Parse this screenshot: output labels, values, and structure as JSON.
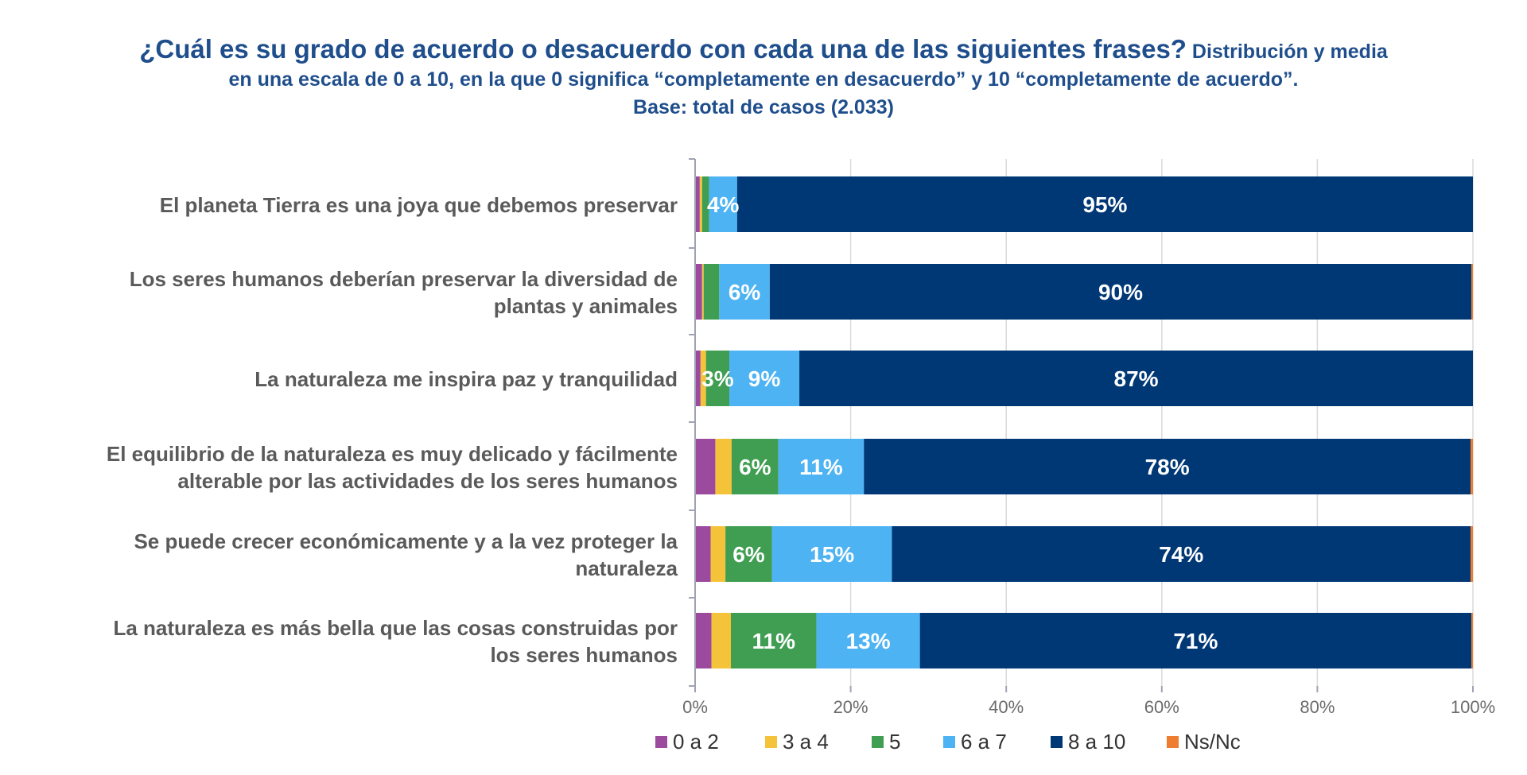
{
  "colors": {
    "title": "#1f4e8c",
    "axis": "#9fa3b4",
    "grid": "#d9d9d9",
    "category_text": "#5a5a5a"
  },
  "chart_data": {
    "type": "bar",
    "orientation": "horizontal",
    "stacked": true,
    "title": "¿Cuál es su grado de acuerdo o desacuerdo con cada una de las siguientes frases?",
    "subtitle_line1": "Distribución y media",
    "subtitle_line2": "en una escala de 0 a 10, en la que 0 significa “completamente en desacuerdo” y 10 “completamente de acuerdo”.",
    "subtitle_line3": "Base: total de casos (2.033)",
    "xlabel": "",
    "ylabel": "",
    "xlim": [
      0,
      100
    ],
    "x_ticks": [
      "0%",
      "20%",
      "40%",
      "60%",
      "80%",
      "100%"
    ],
    "grid": true,
    "legend_position": "bottom",
    "categories": [
      "El planeta Tierra es una joya que debemos preservar",
      "Los seres humanos deberían preservar la diversidad de plantas y animales",
      "La naturaleza me inspira paz y tranquilidad",
      "El equilibrio de la naturaleza es muy delicado y fácilmente alterable por las actividades de los seres humanos",
      "Se puede crecer económicamente y a la vez proteger la naturaleza",
      "La naturaleza es más bella que las cosas construidas por los seres humanos"
    ],
    "category_lines": [
      [
        "El planeta Tierra es una joya que debemos preservar"
      ],
      [
        "Los seres humanos deberían preservar la diversidad de",
        "plantas y animales"
      ],
      [
        "La naturaleza me inspira paz y tranquilidad"
      ],
      [
        "El equilibrio de la naturaleza es muy delicado y fácilmente",
        "alterable por las actividades de los seres humanos"
      ],
      [
        "Se puede crecer económicamente y a la vez proteger la",
        "naturaleza"
      ],
      [
        "La naturaleza es más bella que las cosas construidas por",
        "los seres humanos"
      ]
    ],
    "series": [
      {
        "name": "0 a 2",
        "color": "#9b4a9e",
        "values": [
          0.6,
          0.9,
          0.7,
          2.6,
          2.0,
          2.1
        ],
        "labels": [
          "",
          "",
          "",
          "",
          "",
          ""
        ]
      },
      {
        "name": "3 a 4",
        "color": "#f4c33a",
        "values": [
          0.3,
          0.2,
          0.7,
          2.1,
          1.9,
          2.5
        ],
        "labels": [
          "",
          "",
          "",
          "",
          "",
          ""
        ]
      },
      {
        "name": "5",
        "color": "#3f9e52",
        "values": [
          0.9,
          2.0,
          3.0,
          6.0,
          6.0,
          11.0
        ],
        "labels": [
          "",
          "",
          "3%",
          "6%",
          "6%",
          "11%"
        ]
      },
      {
        "name": "6 a 7",
        "color": "#4eb3f3",
        "values": [
          3.6,
          6.5,
          9.0,
          11.0,
          15.4,
          13.3
        ],
        "labels": [
          "4%",
          "6%",
          "9%",
          "11%",
          "15%",
          "13%"
        ]
      },
      {
        "name": "8 a 10",
        "color": "#003876",
        "values": [
          94.6,
          90.2,
          86.6,
          78.0,
          74.4,
          70.9
        ],
        "labels": [
          "95%",
          "90%",
          "87%",
          "78%",
          "74%",
          "71%"
        ]
      },
      {
        "name": "Ns/Nc",
        "color": "#ee7d31",
        "values": [
          0.0,
          0.2,
          0.0,
          0.3,
          0.3,
          0.2
        ],
        "labels": [
          "",
          "",
          "",
          "",
          "",
          ""
        ]
      }
    ]
  }
}
